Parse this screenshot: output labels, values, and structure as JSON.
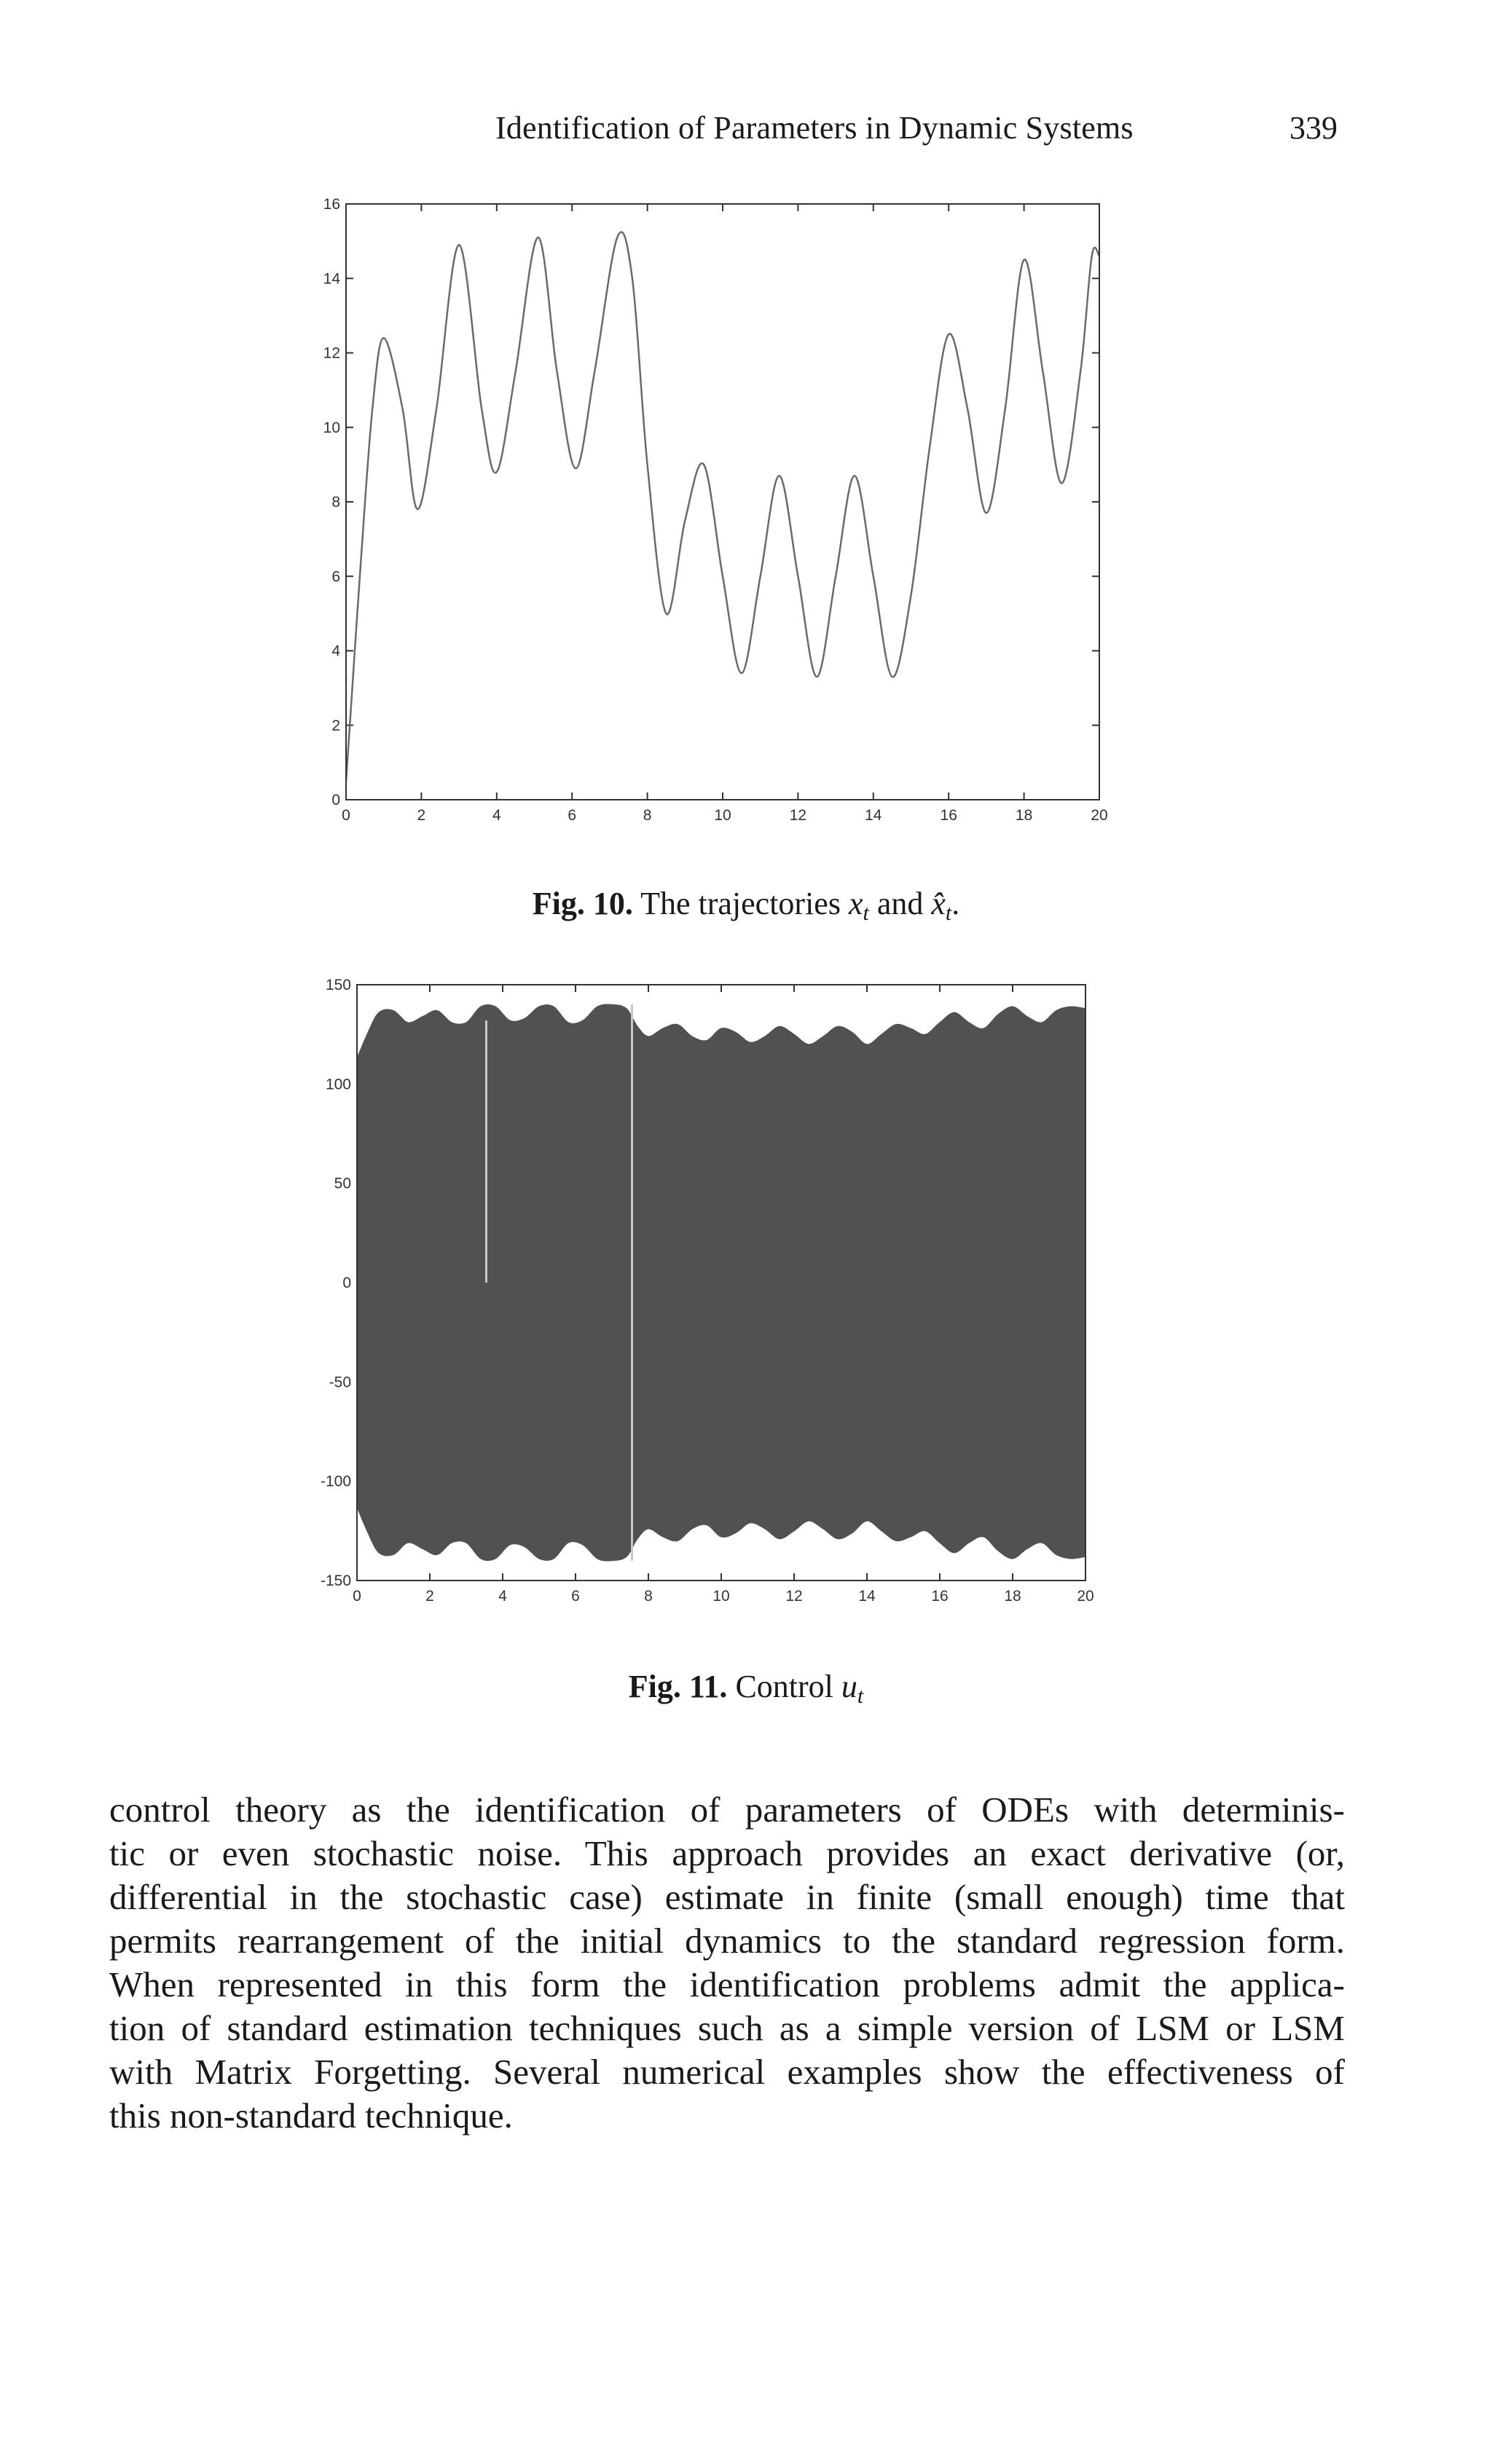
{
  "header": {
    "title": "Identification of Parameters in Dynamic Systems",
    "page_number": "339"
  },
  "figures": [
    {
      "caption_label": "Fig. 10.",
      "caption_text": "The trajectories",
      "caption_math_a": "x",
      "caption_math_a_sub": "t",
      "caption_and": "and",
      "caption_math_b": "x̂",
      "caption_math_b_sub": "t",
      "caption_end": "."
    },
    {
      "caption_label": "Fig. 11.",
      "caption_text": "Control",
      "caption_math_a": "u",
      "caption_math_a_sub": "t"
    }
  ],
  "chart_data": [
    {
      "type": "line",
      "xlim": [
        0,
        20
      ],
      "ylim": [
        0,
        16
      ],
      "xticks": [
        "0",
        "2",
        "4",
        "6",
        "8",
        "10",
        "12",
        "14",
        "16",
        "18",
        "20"
      ],
      "yticks": [
        "0",
        "2",
        "4",
        "6",
        "8",
        "10",
        "12",
        "14",
        "16"
      ],
      "grid": false,
      "x": [
        0,
        0.1,
        0.4,
        0.7,
        1.0,
        1.5,
        1.9,
        2.4,
        3.0,
        3.6,
        4.0,
        4.5,
        5.1,
        5.6,
        6.1,
        6.6,
        7.2,
        7.6,
        8.0,
        8.5,
        9.0,
        9.5,
        10.0,
        10.5,
        11.0,
        11.5,
        12.0,
        12.5,
        13.0,
        13.5,
        14.0,
        14.5,
        15.0,
        15.5,
        16.0,
        16.5,
        17.0,
        17.5,
        18.0,
        18.5,
        19.0,
        19.5,
        19.8,
        20.0
      ],
      "y": [
        0.5,
        2.0,
        6.5,
        10.5,
        12.4,
        10.5,
        7.8,
        10.5,
        14.9,
        10.5,
        8.8,
        11.5,
        15.1,
        11.5,
        8.9,
        11.5,
        15.1,
        14.0,
        9.0,
        5.0,
        7.5,
        9.0,
        6.0,
        3.4,
        6.0,
        8.7,
        6.0,
        3.3,
        6.0,
        8.7,
        6.0,
        3.3,
        5.5,
        9.5,
        12.5,
        10.5,
        7.7,
        10.5,
        14.5,
        11.5,
        8.5,
        11.5,
        14.6,
        14.6
      ]
    },
    {
      "type": "area",
      "xlim": [
        0,
        20
      ],
      "ylim": [
        -150,
        150
      ],
      "xticks": [
        "0",
        "2",
        "4",
        "6",
        "8",
        "10",
        "12",
        "14",
        "16",
        "18",
        "20"
      ],
      "yticks": [
        "150",
        "100",
        "50",
        "0",
        "-50",
        "-100",
        "-150"
      ],
      "grid": false,
      "fill_color": "#515151",
      "envelope_x": [
        0,
        0.3,
        0.6,
        1.0,
        1.4,
        1.8,
        2.2,
        2.6,
        3.0,
        3.4,
        3.8,
        4.2,
        4.6,
        5.0,
        5.4,
        5.8,
        6.2,
        6.6,
        7.0,
        7.4,
        7.7,
        8.0,
        8.4,
        8.8,
        9.2,
        9.6,
        10.0,
        10.4,
        10.8,
        11.2,
        11.6,
        12.0,
        12.4,
        12.8,
        13.2,
        13.6,
        14.0,
        14.4,
        14.8,
        15.2,
        15.6,
        16.0,
        16.4,
        16.8,
        17.2,
        17.6,
        18.0,
        18.4,
        18.8,
        19.2,
        19.6,
        20.0
      ],
      "envelope_upper": [
        113,
        126,
        136,
        137,
        131,
        134,
        137,
        131,
        131,
        139,
        139,
        132,
        133,
        139,
        139,
        131,
        132,
        139,
        140,
        138,
        129,
        124,
        128,
        130,
        124,
        122,
        128,
        126,
        121,
        124,
        129,
        125,
        120,
        124,
        129,
        126,
        120,
        125,
        130,
        128,
        125,
        131,
        136,
        131,
        128,
        135,
        139,
        134,
        131,
        137,
        139,
        138
      ],
      "envelope_lower": [
        -113,
        -126,
        -136,
        -137,
        -131,
        -134,
        -137,
        -131,
        -131,
        -139,
        -139,
        -132,
        -133,
        -139,
        -139,
        -131,
        -132,
        -139,
        -140,
        -138,
        -129,
        -124,
        -128,
        -130,
        -124,
        -122,
        -128,
        -126,
        -121,
        -124,
        -129,
        -125,
        -120,
        -124,
        -129,
        -126,
        -120,
        -125,
        -130,
        -128,
        -125,
        -131,
        -136,
        -131,
        -128,
        -135,
        -139,
        -134,
        -131,
        -137,
        -139,
        -138
      ],
      "spikes": [
        {
          "x": 3.55,
          "y_from": 0,
          "y_to": 132
        },
        {
          "x": 7.55,
          "y_from": -140,
          "y_to": 140
        }
      ]
    }
  ],
  "body": {
    "lines": [
      "control theory as the identification of parameters of ODEs with determinis-",
      "tic or even stochastic noise. This approach provides an exact derivative (or,",
      "differential in the stochastic case) estimate in finite (small enough) time that",
      "permits rearrangement of the initial dynamics to the standard regression form.",
      "When represented in this form the identification problems admit the applica-",
      "tion of standard estimation techniques such as a simple version of LSM or LSM",
      "with Matrix Forgetting. Several numerical examples show the effectiveness of",
      "this non-standard technique."
    ]
  }
}
